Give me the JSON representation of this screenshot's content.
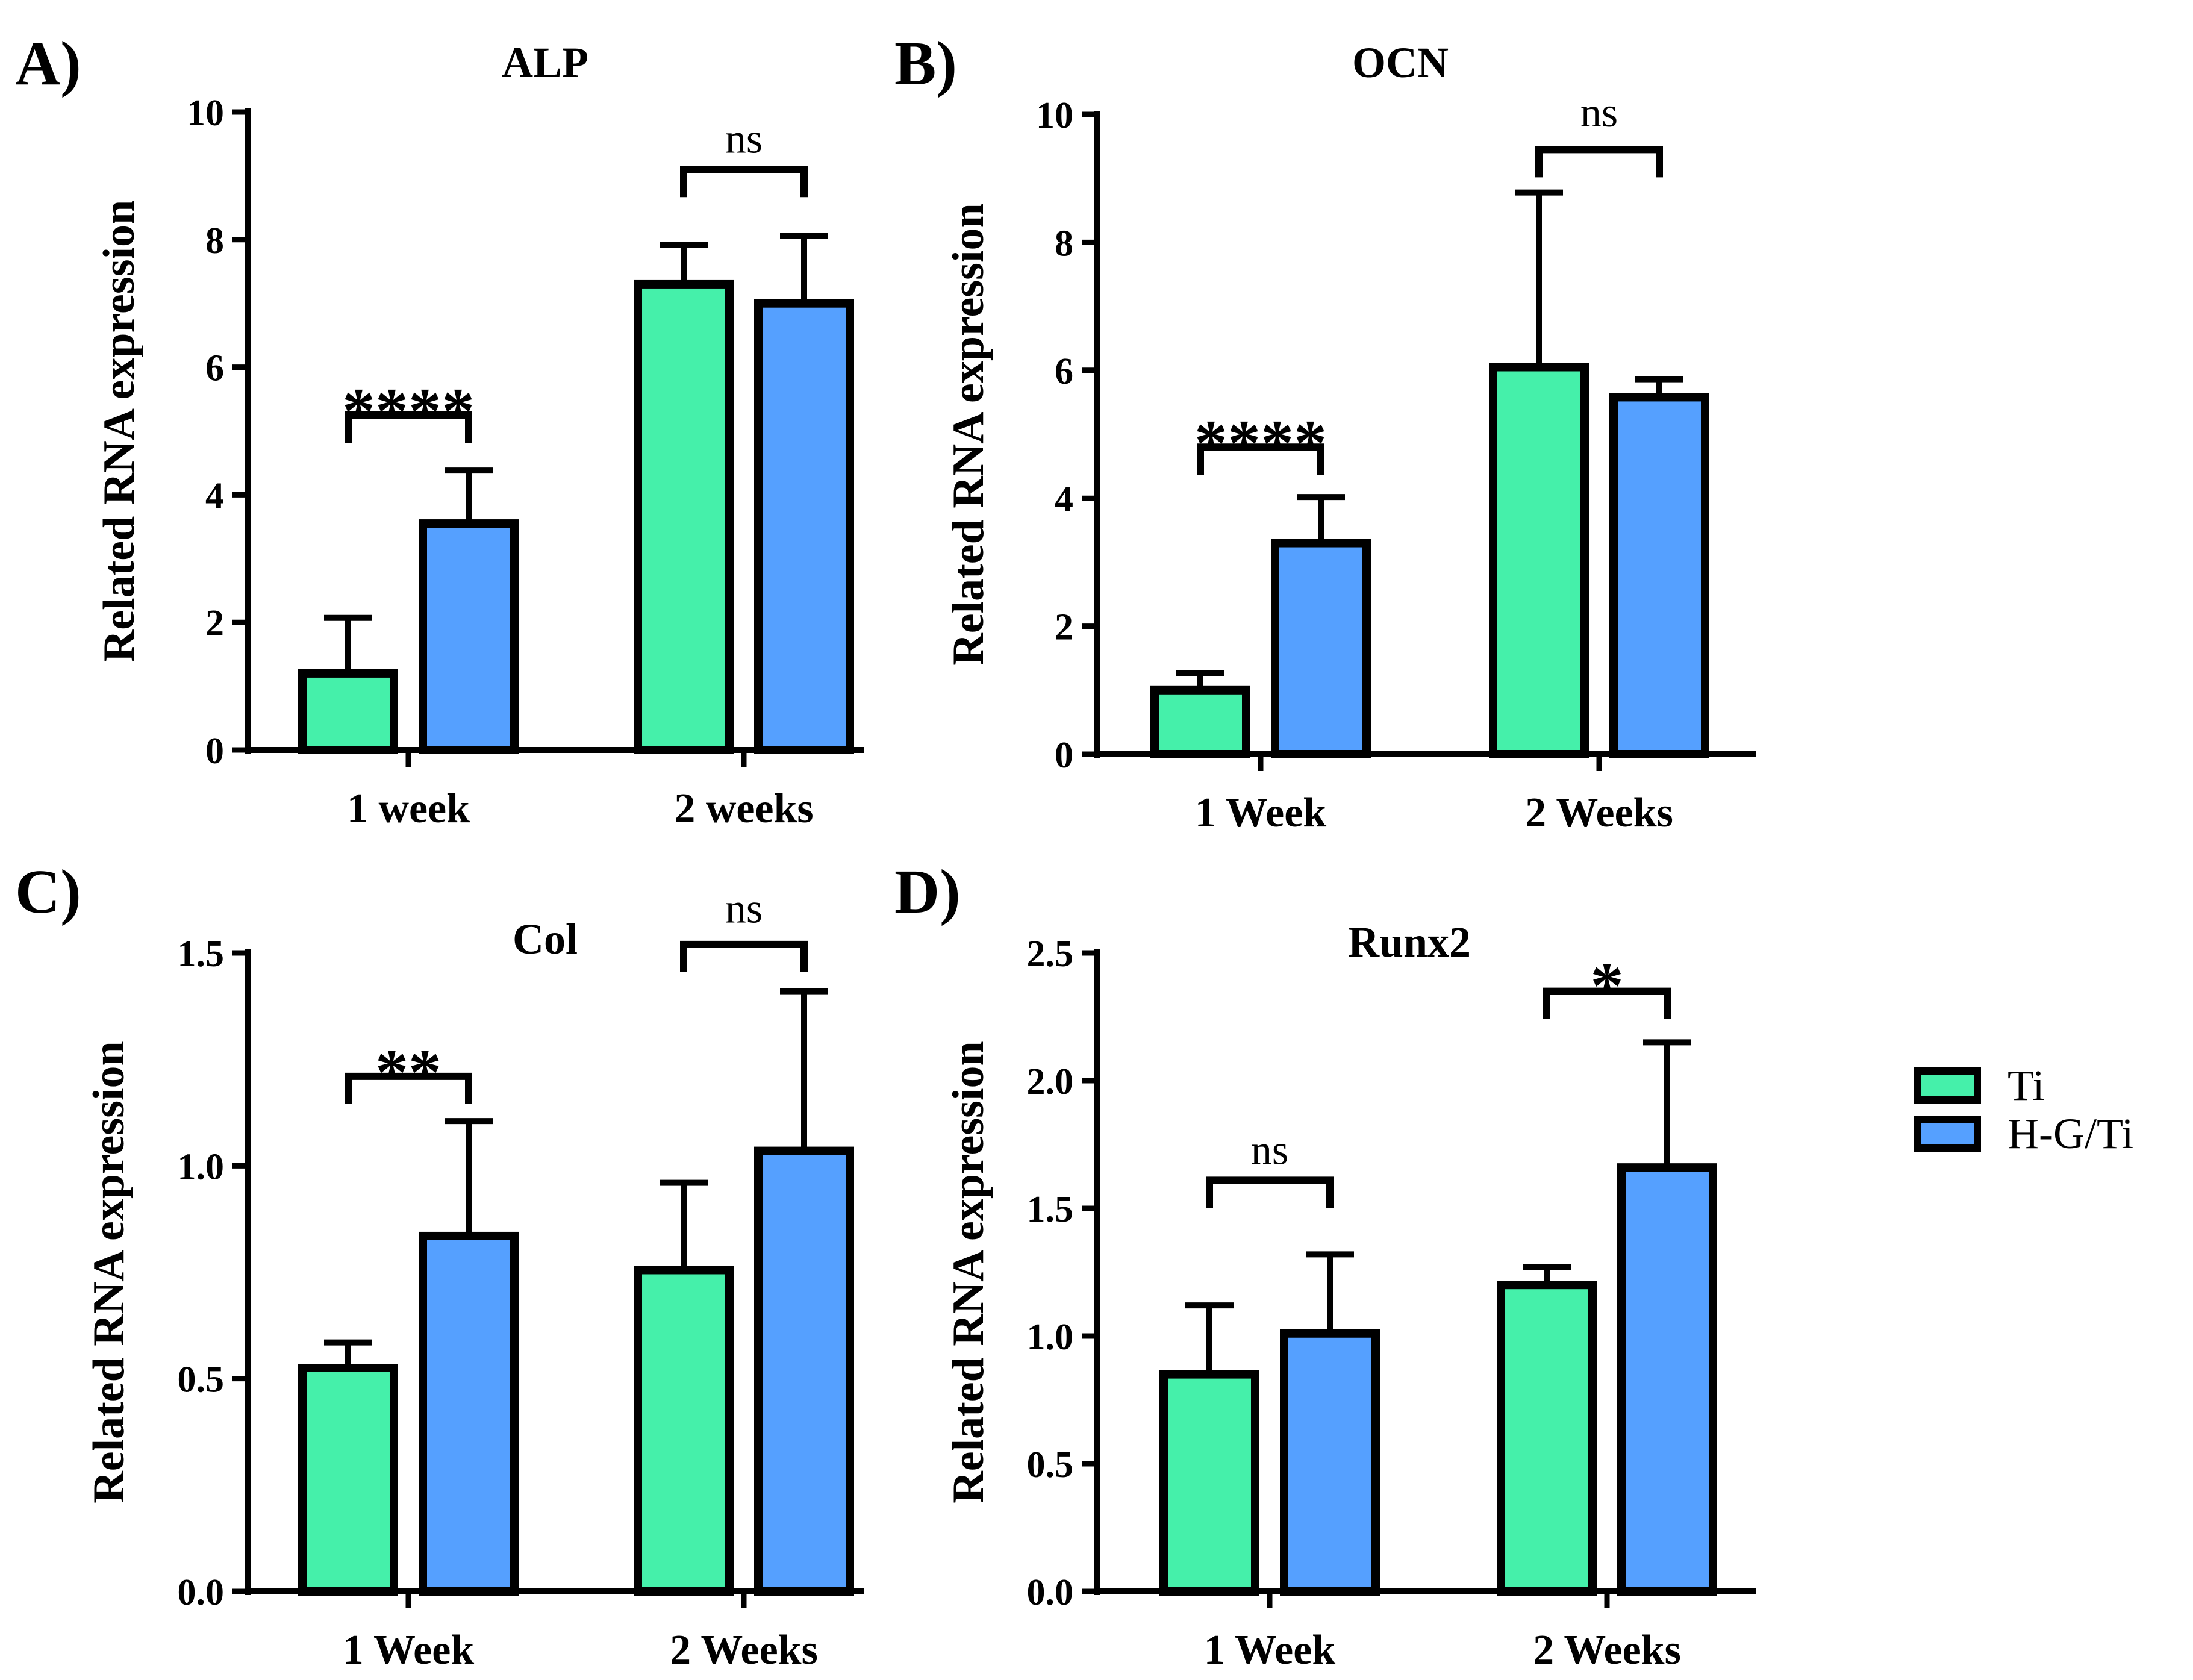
{
  "legend": [
    {
      "label": "Ti",
      "color": "#45F0AA"
    },
    {
      "label": "H-G/Ti",
      "color": "#55A0FF"
    }
  ],
  "chart_data": [
    {
      "type": "bar",
      "panel": "A)",
      "title": "ALP",
      "ylabel": "Related RNA expression",
      "xlabel": "",
      "ylim": [
        0,
        10
      ],
      "yticks": [
        "0",
        "2",
        "4",
        "6",
        "8",
        "10"
      ],
      "yticks_values": [
        0,
        2,
        4,
        6,
        8,
        10
      ],
      "categories": [
        "1 week",
        "2 weeks"
      ],
      "series": [
        {
          "name": "Ti",
          "color": "#45F0AA",
          "values": [
            1.2,
            7.3
          ],
          "errors": [
            0.87,
            0.62
          ]
        },
        {
          "name": "H-G/Ti",
          "color": "#55A0FF",
          "values": [
            3.55,
            7.0
          ],
          "errors": [
            0.83,
            1.06
          ]
        }
      ],
      "significance": [
        {
          "category": 0,
          "label": "****",
          "kind": "stars",
          "bracket_value": 5.25,
          "label_value": 5.55
        },
        {
          "category": 1,
          "label": "ns",
          "kind": "ns",
          "bracket_value": 9.1,
          "label_value": 9.55
        }
      ]
    },
    {
      "type": "bar",
      "panel": "B)",
      "title": "OCN",
      "ylabel": "Related RNA expression",
      "xlabel": "",
      "ylim": [
        0,
        10
      ],
      "yticks": [
        "0",
        "2",
        "4",
        "6",
        "8",
        "10"
      ],
      "yticks_values": [
        0,
        2,
        4,
        6,
        8,
        10
      ],
      "categories": [
        "1 Week",
        "2 Weeks"
      ],
      "series": [
        {
          "name": "Ti",
          "color": "#45F0AA",
          "values": [
            1.0,
            6.05
          ],
          "errors": [
            0.27,
            2.73
          ]
        },
        {
          "name": "H-G/Ti",
          "color": "#55A0FF",
          "values": [
            3.3,
            5.58
          ],
          "errors": [
            0.72,
            0.28
          ]
        }
      ],
      "significance": [
        {
          "category": 0,
          "label": "****",
          "kind": "stars",
          "bracket_value": 4.8,
          "label_value": 5.1
        },
        {
          "category": 1,
          "label": "ns",
          "kind": "ns",
          "bracket_value": 9.45,
          "label_value": 10.0
        }
      ]
    },
    {
      "type": "bar",
      "panel": "C)",
      "title": "Col",
      "ylabel": "Related RNA expression",
      "xlabel": "",
      "ylim": [
        0,
        1.5
      ],
      "yticks": [
        "0.0",
        "0.5",
        "1.0",
        "1.5"
      ],
      "yticks_values": [
        0,
        0.5,
        1.0,
        1.5
      ],
      "categories": [
        "1 Week",
        "2 Weeks"
      ],
      "series": [
        {
          "name": "Ti",
          "color": "#45F0AA",
          "values": [
            0.525,
            0.755
          ],
          "errors": [
            0.06,
            0.205
          ]
        },
        {
          "name": "H-G/Ti",
          "color": "#55A0FF",
          "values": [
            0.835,
            1.035
          ],
          "errors": [
            0.27,
            0.375
          ]
        }
      ],
      "significance": [
        {
          "category": 0,
          "label": "**",
          "kind": "stars",
          "bracket_value": 1.21,
          "label_value": 1.255
        },
        {
          "category": 1,
          "label": "ns",
          "kind": "ns",
          "bracket_value": 1.52,
          "label_value": 1.6
        }
      ]
    },
    {
      "type": "bar",
      "panel": "D)",
      "title": "Runx2",
      "ylabel": "Related RNA expression",
      "xlabel": "",
      "ylim": [
        0,
        2.5
      ],
      "yticks": [
        "0.0",
        "0.5",
        "1.0",
        "1.5",
        "2.0",
        "2.5"
      ],
      "yticks_values": [
        0,
        0.5,
        1.0,
        1.5,
        2.0,
        2.5
      ],
      "categories": [
        "1 Week",
        "2 Weeks"
      ],
      "series": [
        {
          "name": "Ti",
          "color": "#45F0AA",
          "values": [
            0.85,
            1.2
          ],
          "errors": [
            0.27,
            0.07
          ]
        },
        {
          "name": "H-G/Ti",
          "color": "#55A0FF",
          "values": [
            1.01,
            1.66
          ],
          "errors": [
            0.31,
            0.49
          ]
        }
      ],
      "significance": [
        {
          "category": 0,
          "label": "ns",
          "kind": "ns",
          "bracket_value": 1.61,
          "label_value": 1.72
        },
        {
          "category": 1,
          "label": "*",
          "kind": "stars",
          "bracket_value": 2.35,
          "label_value": 2.43
        }
      ]
    }
  ]
}
